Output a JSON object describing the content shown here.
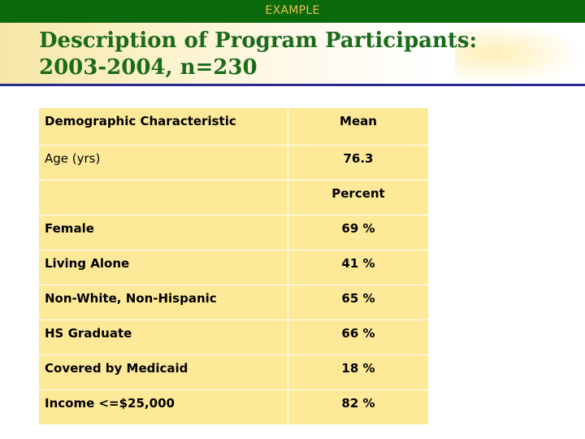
{
  "header": {
    "tag": "EXAMPLE"
  },
  "title": {
    "line1": "Description of Program Participants:",
    "line2": "2003-2004, n=230"
  },
  "table": {
    "header": {
      "col1": "Demographic Characteristic",
      "col2": "Mean"
    },
    "rows": [
      {
        "label": "Age (yrs)",
        "value": "76.3"
      },
      {
        "label": "",
        "value": "Percent"
      },
      {
        "label": "Female",
        "value": "69 %"
      },
      {
        "label": "Living Alone",
        "value": "41 %"
      },
      {
        "label": "Non-White, Non-Hispanic",
        "value": "65 %"
      },
      {
        "label": "HS Graduate",
        "value": "66 %"
      },
      {
        "label": "Covered by Medicaid",
        "value": "18 %"
      },
      {
        "label": "Income <=$25,000",
        "value": "82 %"
      }
    ]
  },
  "colors": {
    "top_bar": "#0b6a0b",
    "tag_text": "#e8c24a",
    "title_text": "#1a6b1a",
    "rule": "#2a2a8c",
    "table_fill": "#fde998"
  }
}
